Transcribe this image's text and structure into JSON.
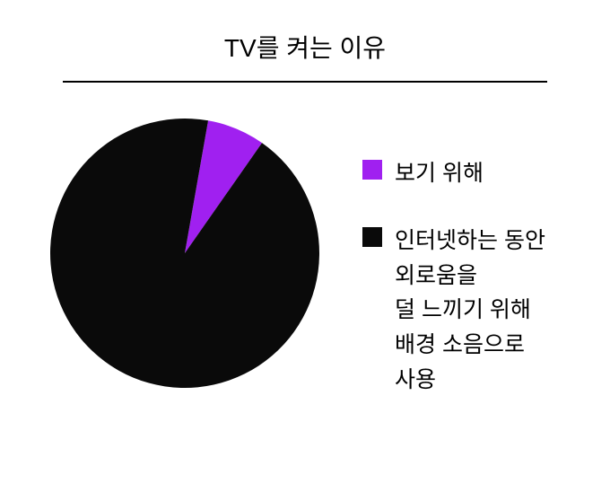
{
  "chart": {
    "type": "pie",
    "title": "TV를 켜는 이유",
    "title_fontsize": 28,
    "title_color": "#000000",
    "divider_color": "#000000",
    "background_color": "#ffffff",
    "pie_diameter": 300,
    "slices": [
      {
        "label": "보기 위해",
        "value": 7,
        "color": "#a020f0",
        "start_angle_deg": -80,
        "end_angle_deg": -55
      },
      {
        "label": "인터넷하는 동안\n외로움을\n덜 느끼기 위해\n배경 소음으로\n사용",
        "value": 93,
        "color": "#0a0a0a",
        "start_angle_deg": -55,
        "end_angle_deg": 280
      }
    ],
    "legend": {
      "swatch_size": 22,
      "label_fontsize": 25,
      "label_color": "#000000"
    }
  }
}
